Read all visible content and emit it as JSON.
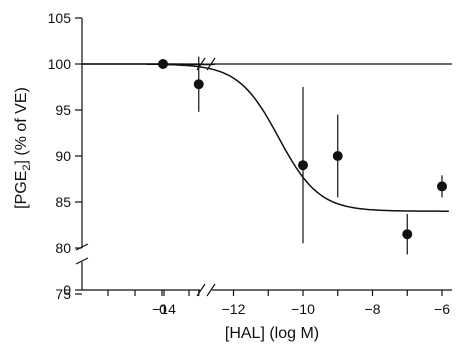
{
  "chart_data": {
    "type": "scatter",
    "title": "",
    "xlabel": "[HAL] (log M)",
    "ylabel": "[PGE2] (% of VE)",
    "ylabel_parts": {
      "pre": "[PGE",
      "sub": "2",
      "post": "] (% of VE)"
    },
    "x_ticks": [
      "0",
      "−14",
      "−12",
      "−10",
      "−8",
      "−6"
    ],
    "x_tick_values": [
      0,
      -14,
      -12,
      -10,
      -8,
      -6
    ],
    "y_ticks": [
      "105",
      "100",
      "95",
      "90",
      "85",
      "80",
      "75",
      "0"
    ],
    "y_tick_values": [
      105,
      100,
      95,
      90,
      85,
      80,
      75,
      0
    ],
    "ylim": [
      75,
      105
    ],
    "x_axis_break": true,
    "y_axis_break": true,
    "reference_line_y": 100,
    "points": [
      {
        "x": 0,
        "y": 100.0
      },
      {
        "x": -13,
        "y": 97.8,
        "err": 3.0
      },
      {
        "x": -10,
        "y": 89.0,
        "err": 8.5
      },
      {
        "x": -9,
        "y": 90.0,
        "err": 4.5
      },
      {
        "x": -7,
        "y": 81.5,
        "err": 2.2
      },
      {
        "x": -6,
        "y": 86.7,
        "err": 1.2
      }
    ],
    "fit_curve": {
      "top": 100,
      "bottom": 84,
      "x_mid": -10.7,
      "slope": 0.75
    },
    "colors": {
      "ink": "#111111",
      "background": "#ffffff"
    }
  }
}
